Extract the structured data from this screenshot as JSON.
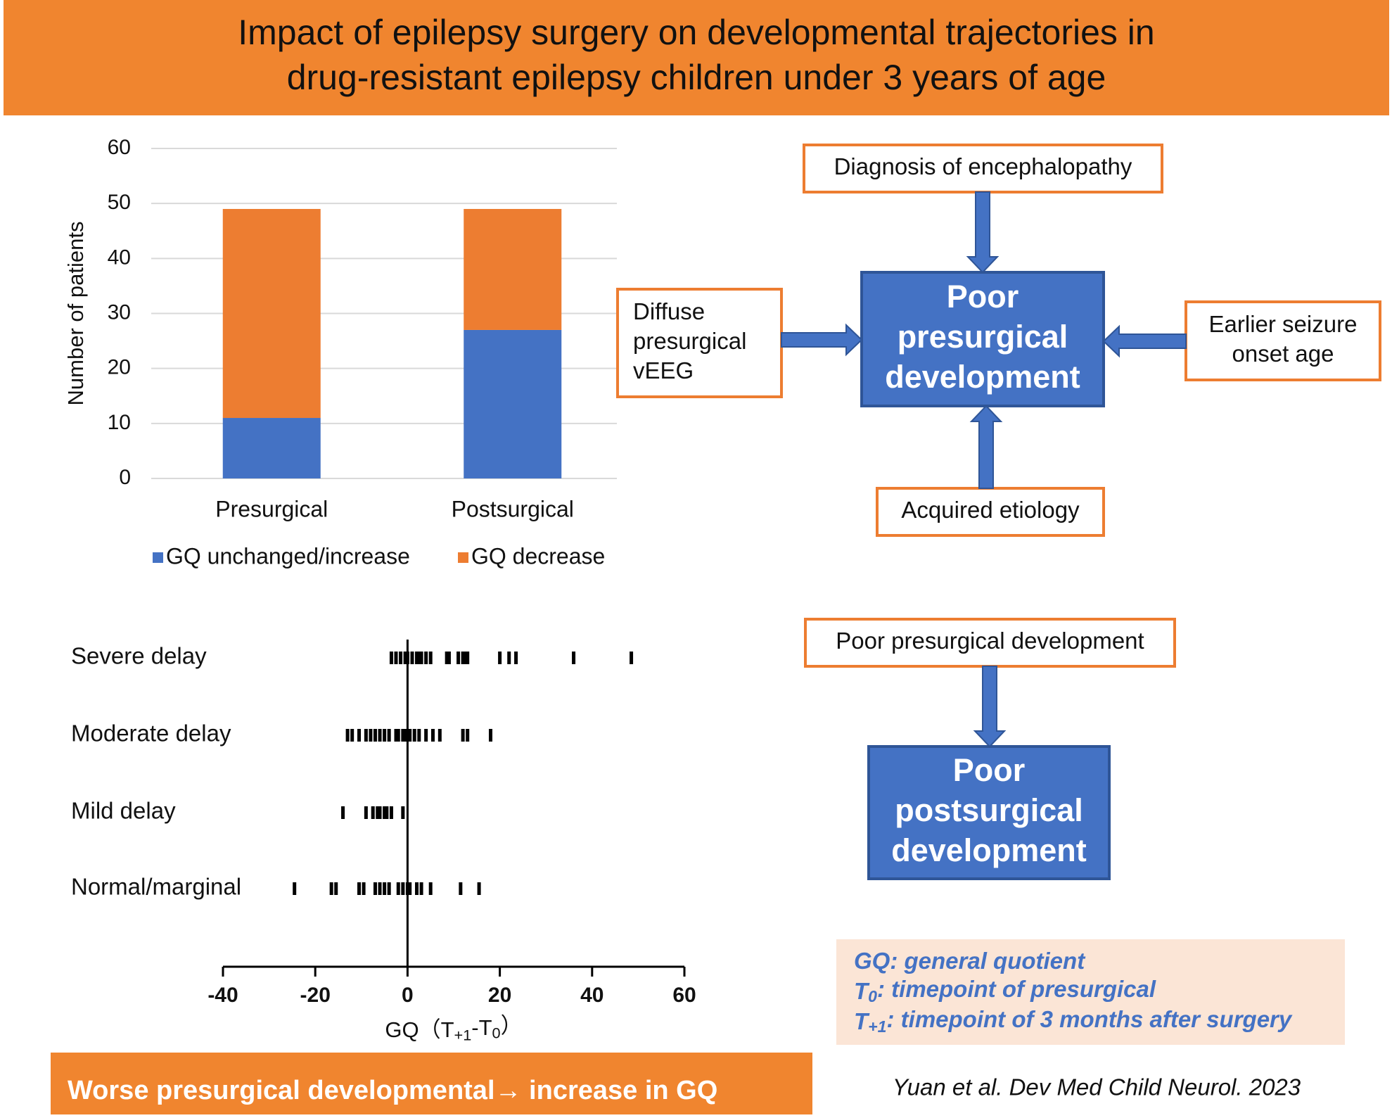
{
  "header": {
    "title_lines": [
      "Impact of epilepsy surgery on developmental trajectories in",
      "drug-resistant epilepsy children under 3 years of age"
    ]
  },
  "chart_data": [
    {
      "type": "bar",
      "stacked": true,
      "categories": [
        "Presurgical",
        "Postsurgical"
      ],
      "series": [
        {
          "name": "GQ unchanged/increase",
          "color": "#4472c4",
          "values": [
            11,
            27
          ]
        },
        {
          "name": "GQ decrease",
          "color": "#ed7d31",
          "values": [
            38,
            22
          ]
        }
      ],
      "ylabel": "Number of patients",
      "ylim": [
        0,
        60
      ],
      "yticks": [
        0,
        10,
        20,
        30,
        40,
        50,
        60
      ],
      "grid": true,
      "legend": "bottom"
    },
    {
      "type": "strip",
      "color": "#000000",
      "categories": [
        "Severe delay",
        "Moderate delay",
        "Mild delay",
        "Normal/marginal"
      ],
      "values": [
        [
          -3.5,
          -2.5,
          -1.5,
          -0.5,
          0,
          1,
          2,
          2.5,
          3,
          4,
          5,
          8.5,
          9,
          11,
          12,
          12.5,
          13,
          20,
          22,
          23.5,
          36,
          48.5
        ],
        [
          -13,
          -12,
          -10.5,
          -9,
          -8,
          -7,
          -6,
          -5,
          -4,
          -2.5,
          -2,
          -1,
          -0.5,
          0.5,
          1.5,
          2.5,
          4,
          5.5,
          7,
          12,
          13,
          18
        ],
        [
          -14,
          -9,
          -7.5,
          -6.5,
          -6,
          -5,
          -4.5,
          -3.5,
          -1
        ],
        [
          -24.5,
          -16.5,
          -15.5,
          -10.5,
          -9.5,
          -7,
          -6,
          -5,
          -4,
          -2,
          -1,
          0,
          0.5,
          2,
          3,
          5,
          11.5,
          15.5
        ]
      ],
      "xlabel_parts": [
        "GQ（T",
        "+1",
        "-T",
        "0",
        "）"
      ],
      "xlim": [
        -40,
        60
      ],
      "xticks": [
        -40,
        -20,
        0,
        20,
        40,
        60
      ]
    }
  ],
  "diagram_top": {
    "nodes": [
      {
        "lines": [
          "Diagnosis of encephalopathy"
        ]
      },
      {
        "lines": [
          "Diffuse",
          "presurgical",
          "vEEG"
        ]
      },
      {
        "lines": [
          "Poor",
          "presurgical",
          "development"
        ]
      },
      {
        "lines": [
          "Earlier seizure",
          "onset age"
        ]
      },
      {
        "lines": [
          "Acquired etiology"
        ]
      }
    ]
  },
  "diagram_bottom": {
    "nodes": [
      {
        "lines": [
          "Poor presurgical development"
        ]
      },
      {
        "lines": [
          "Poor",
          "postsurgical",
          "development"
        ]
      }
    ]
  },
  "glossary": [
    [
      "GQ: general quotient"
    ],
    [
      "T",
      "0",
      ": timepoint of presurgical"
    ],
    [
      "T",
      "+1",
      ": timepoint of 3 months after surgery"
    ]
  ],
  "citation": "Yuan et al. Dev Med Child Neurol. 2023",
  "conclusion": "Worse presurgical developmental→ increase in GQ"
}
